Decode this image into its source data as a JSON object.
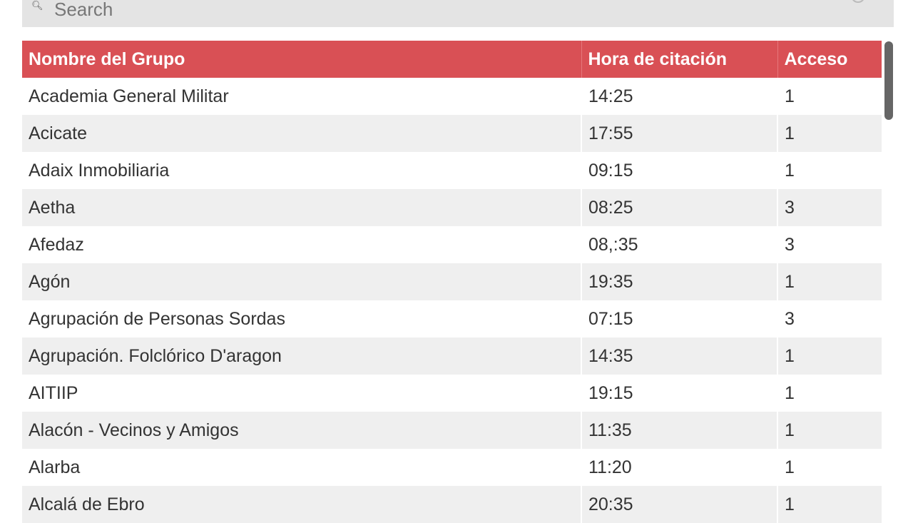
{
  "search": {
    "placeholder": "Search",
    "icon": "search-icon"
  },
  "table": {
    "headers": [
      "Nombre del Grupo",
      "Hora de citación",
      "Acceso"
    ],
    "header_color": "#d95055",
    "rows": [
      [
        "Academia General Militar",
        "14:25",
        "1"
      ],
      [
        "Acicate",
        "17:55",
        "1"
      ],
      [
        "Adaix Inmobiliaria",
        "09:15",
        "1"
      ],
      [
        "Aetha",
        "08:25",
        "3"
      ],
      [
        "Afedaz",
        "08,:35",
        "3"
      ],
      [
        "Agón",
        "19:35",
        "1"
      ],
      [
        "Agrupación de Personas Sordas",
        "07:15",
        "3"
      ],
      [
        "Agrupación. Folclórico D'aragon",
        "14:35",
        "1"
      ],
      [
        "AITIIP",
        "19:15",
        "1"
      ],
      [
        "Alacón - Vecinos y Amigos",
        "11:35",
        "1"
      ],
      [
        "Alarba",
        "11:20",
        "1"
      ],
      [
        "Alcalá de Ebro",
        "20:35",
        "1"
      ]
    ]
  }
}
